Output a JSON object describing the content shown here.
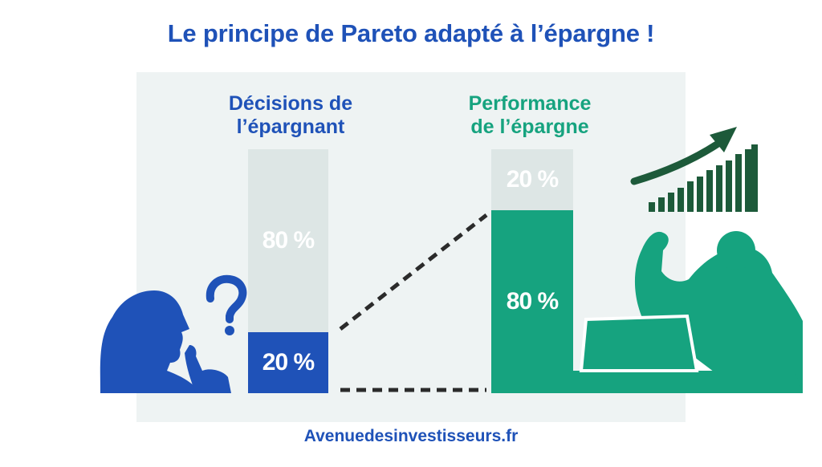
{
  "title": "Le principe de Pareto adapté à l’épargne !",
  "left": {
    "heading_line1": "Décisions de",
    "heading_line2": "l’épargnant",
    "top_value": "80 %",
    "bottom_value": "20 %"
  },
  "right": {
    "heading_line1": "Performance",
    "heading_line2": "de l’épargne",
    "top_value": "20 %",
    "bottom_value": "80 %"
  },
  "footer": "Avenuedesinvestisseurs.fr",
  "colors": {
    "blue": "#1f52b8",
    "green": "#16a37f",
    "light_gray": "#dde6e5",
    "dark_green": "#1d5a3a"
  },
  "icons": [
    "thinking-person-icon",
    "question-mark-icon",
    "flexing-person-icon",
    "laptop-icon",
    "growth-chart-icon",
    "trend-arrow-icon"
  ]
}
